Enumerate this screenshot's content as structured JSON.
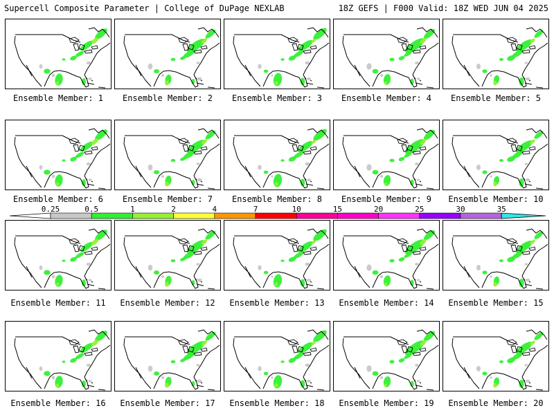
{
  "header": {
    "title": "Supercell Composite Parameter | College of DuPage NEXLAB",
    "run_info": "18Z GEFS | F000 Valid: 18Z WED JUN 04 2025"
  },
  "legend": {
    "ticks": [
      "0.25",
      "0.5",
      "1",
      "2",
      "4",
      "7",
      "10",
      "15",
      "20",
      "25",
      "30",
      "35"
    ],
    "colors": [
      "#c8c8c8",
      "#32f032",
      "#96f032",
      "#ffff32",
      "#ff9600",
      "#ff0000",
      "#ff0096",
      "#ff00c8",
      "#ff32ff",
      "#9600ff",
      "#b464dc",
      "#32e6e6"
    ]
  },
  "panels": [
    {
      "label": "Ensemble Member: 1"
    },
    {
      "label": "Ensemble Member: 2"
    },
    {
      "label": "Ensemble Member: 3"
    },
    {
      "label": "Ensemble Member: 4"
    },
    {
      "label": "Ensemble Member: 5"
    },
    {
      "label": "Ensemble Member: 6"
    },
    {
      "label": "Ensemble Member: 7"
    },
    {
      "label": "Ensemble Member: 8"
    },
    {
      "label": "Ensemble Member: 9"
    },
    {
      "label": "Ensemble Member: 10"
    },
    {
      "label": "Ensemble Member: 11"
    },
    {
      "label": "Ensemble Member: 12"
    },
    {
      "label": "Ensemble Member: 13"
    },
    {
      "label": "Ensemble Member: 14"
    },
    {
      "label": "Ensemble Member: 15"
    },
    {
      "label": "Ensemble Member: 16"
    },
    {
      "label": "Ensemble Member: 17"
    },
    {
      "label": "Ensemble Member: 18"
    },
    {
      "label": "Ensemble Member: 19"
    },
    {
      "label": "Ensemble Member: 20"
    }
  ]
}
